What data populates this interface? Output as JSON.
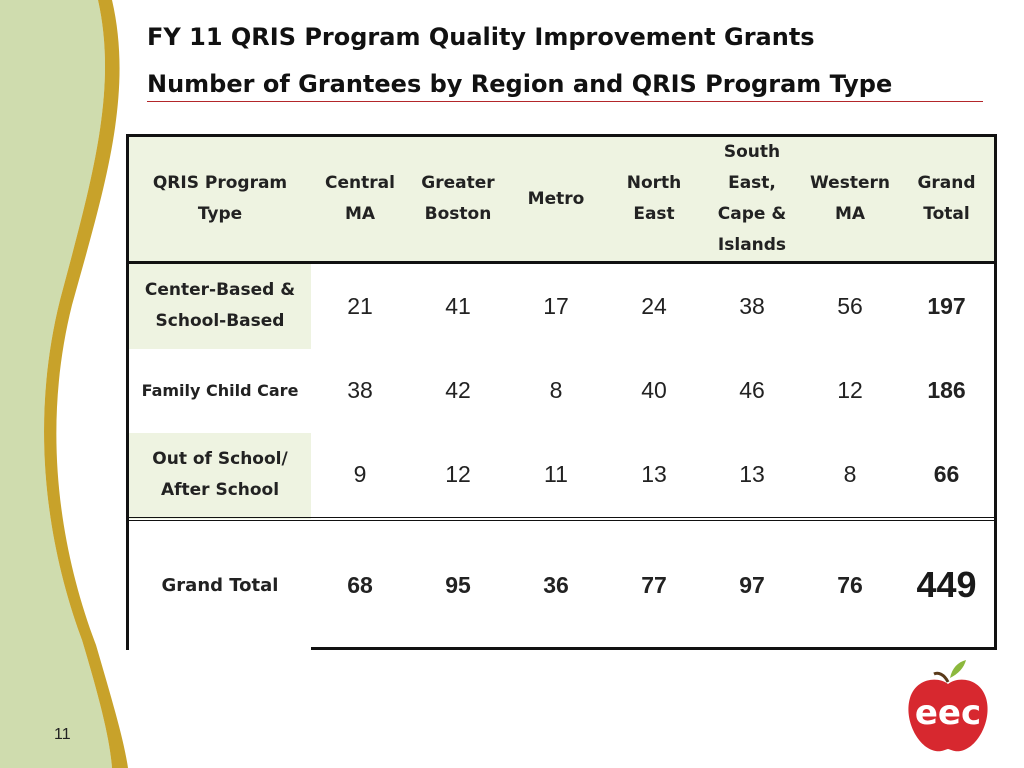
{
  "title": {
    "line1": "FY 11 QRIS Program Quality Improvement  Grants",
    "line2": "Number of Grantees by Region and QRIS Program Type"
  },
  "table": {
    "headers": [
      "QRIS Program Type",
      "Central MA",
      "Greater Boston",
      "Metro",
      "North East",
      "South East, Cape & Islands",
      "Western MA",
      "Grand Total"
    ],
    "rows": [
      {
        "label": "Center-Based & School-Based",
        "values": [
          "21",
          "41",
          "17",
          "24",
          "38",
          "56"
        ],
        "total": "197"
      },
      {
        "label": "Family Child Care",
        "values": [
          "38",
          "42",
          "8",
          "40",
          "46",
          "12"
        ],
        "total": "186"
      },
      {
        "label": "Out of School/ After School",
        "values": [
          "9",
          "12",
          "11",
          "13",
          "13",
          "8"
        ],
        "total": "66"
      }
    ],
    "grand_total_row": {
      "label": "Grand Total",
      "values": [
        "68",
        "95",
        "36",
        "77",
        "97",
        "76"
      ],
      "total": "449"
    }
  },
  "footer": {
    "page_number": "11"
  },
  "logo": {
    "text": "eec",
    "icon": "apple-logo-icon",
    "color": "#d7282f"
  },
  "colors": {
    "header_fill": "#eef3e1",
    "deco_green": "#cfdcae",
    "deco_gold": "#c8a22a",
    "title_rule": "#b3262a"
  }
}
